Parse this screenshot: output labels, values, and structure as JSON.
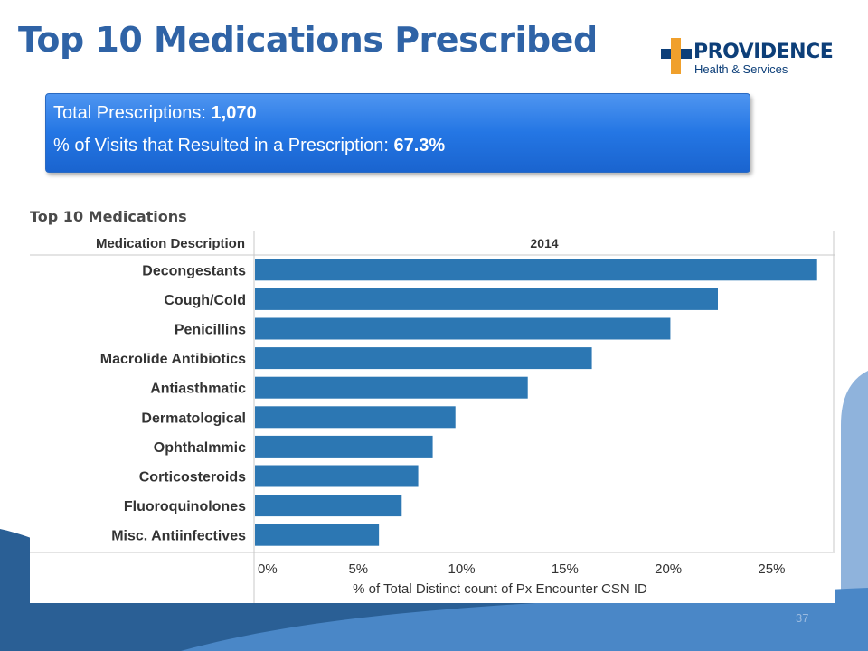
{
  "slide": {
    "title": "Top 10 Medications Prescribed",
    "page_number": "37"
  },
  "logo": {
    "name_part1": "PROV",
    "name_part2": "IDENCE",
    "subtitle": "Health & Services",
    "colors": {
      "cross": "#f0a02c",
      "text": "#0d3f79"
    }
  },
  "callout": {
    "line1_label": "Total Prescriptions: ",
    "line1_value": "1,070",
    "line2_label": "% of Visits that Resulted in a Prescription: ",
    "line2_value": "67.3%"
  },
  "chart_data": {
    "type": "bar",
    "orientation": "horizontal",
    "title": "Top 10 Medications",
    "row_header": "Medication Description",
    "column_header": "2014",
    "categories": [
      "Decongestants",
      "Cough/Cold",
      "Penicillins",
      "Macrolide Antibiotics",
      "Antiasthmatic",
      "Dermatological",
      "Ophthalmmic",
      "Corticosteroids",
      "Fluoroquinolones",
      "Misc. Antiinfectives"
    ],
    "series": [
      {
        "values": [
          27.2,
          22.4,
          20.1,
          16.3,
          13.2,
          9.7,
          8.6,
          7.9,
          7.1,
          6.0
        ]
      }
    ],
    "xlabel": "% of Total Distinct count of Px Encounter CSN ID",
    "xticks": [
      "0%",
      "5%",
      "10%",
      "15%",
      "20%",
      "25%"
    ],
    "xlim": [
      0,
      28
    ],
    "grid": false,
    "bar_color": "#2c77b3"
  }
}
